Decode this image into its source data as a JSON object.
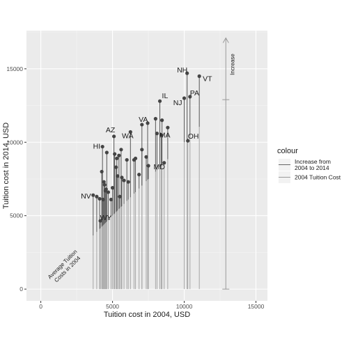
{
  "chart_data": {
    "type": "scatter",
    "title": "",
    "xlabel": "Tuition cost in 2004, USD",
    "ylabel": "Tuition cost in 2014, USD",
    "xlim": [
      -1000,
      15800
    ],
    "ylim": [
      -800,
      17600
    ],
    "xticks": [
      0,
      5000,
      10000,
      15000
    ],
    "yticks": [
      0,
      5000,
      10000,
      15000
    ],
    "grid": true,
    "panel_background": "#EBEBEB",
    "point_color": "#444444",
    "segment_color": "#999999",
    "legend": {
      "title": "colour",
      "placement": "right",
      "entries": [
        {
          "label": "Increase from 2004 to 2014",
          "lines": [
            "Increase from",
            "2004 to 2014"
          ],
          "color": "#666666"
        },
        {
          "label": "2004 Tuition Cost",
          "lines": [
            "2004 Tuition Cost"
          ],
          "color": "#999999"
        }
      ]
    },
    "annotations": {
      "diagonal_text": [
        "Average Tuition",
        "Costs in 2004"
      ],
      "arrow_label": "Increase",
      "arrow": {
        "x": 12900,
        "y_start": 0,
        "y_mid": 12900,
        "y_end": 17100
      }
    },
    "points": [
      {
        "x": 3650,
        "y": 6400,
        "label": "NV"
      },
      {
        "x": 3900,
        "y": 6300
      },
      {
        "x": 4100,
        "y": 6150
      },
      {
        "x": 4150,
        "y": 4650,
        "label": "WY"
      },
      {
        "x": 4250,
        "y": 8000
      },
      {
        "x": 4300,
        "y": 9700,
        "label": "HI"
      },
      {
        "x": 4350,
        "y": 6100
      },
      {
        "x": 4400,
        "y": 7300
      },
      {
        "x": 4450,
        "y": 7100
      },
      {
        "x": 4500,
        "y": 6700
      },
      {
        "x": 4550,
        "y": 6800
      },
      {
        "x": 4600,
        "y": 9300
      },
      {
        "x": 4700,
        "y": 6600
      },
      {
        "x": 4900,
        "y": 6100
      },
      {
        "x": 5000,
        "y": 6900
      },
      {
        "x": 5100,
        "y": 10400,
        "label": "AZ"
      },
      {
        "x": 5150,
        "y": 9200
      },
      {
        "x": 5250,
        "y": 8300
      },
      {
        "x": 5300,
        "y": 8900
      },
      {
        "x": 5450,
        "y": 9100
      },
      {
        "x": 5350,
        "y": 7700
      },
      {
        "x": 5500,
        "y": 6300
      },
      {
        "x": 5600,
        "y": 9500
      },
      {
        "x": 5650,
        "y": 7600
      },
      {
        "x": 5800,
        "y": 7400
      },
      {
        "x": 6000,
        "y": 8800
      },
      {
        "x": 6100,
        "y": 7300
      },
      {
        "x": 6250,
        "y": 10700,
        "label": "WA"
      },
      {
        "x": 6500,
        "y": 8800
      },
      {
        "x": 6600,
        "y": 8900
      },
      {
        "x": 6850,
        "y": 7800
      },
      {
        "x": 7050,
        "y": 9500
      },
      {
        "x": 7050,
        "y": 11200,
        "label": "VA"
      },
      {
        "x": 7350,
        "y": 9000
      },
      {
        "x": 7450,
        "y": 11300
      },
      {
        "x": 7500,
        "y": 8400
      },
      {
        "x": 8000,
        "y": 11600
      },
      {
        "x": 8100,
        "y": 10600
      },
      {
        "x": 8300,
        "y": 12800,
        "label": "IL"
      },
      {
        "x": 8400,
        "y": 10500,
        "label": "MA"
      },
      {
        "x": 8450,
        "y": 11500
      },
      {
        "x": 8600,
        "y": 8600,
        "label": "MD"
      },
      {
        "x": 8850,
        "y": 11000
      },
      {
        "x": 10000,
        "y": 13000,
        "label": "NJ"
      },
      {
        "x": 10200,
        "y": 14700,
        "label": "NH"
      },
      {
        "x": 10250,
        "y": 10100,
        "label": "OH"
      },
      {
        "x": 10400,
        "y": 13100,
        "label": "PA"
      },
      {
        "x": 11050,
        "y": 14500,
        "label": "VT"
      }
    ]
  }
}
